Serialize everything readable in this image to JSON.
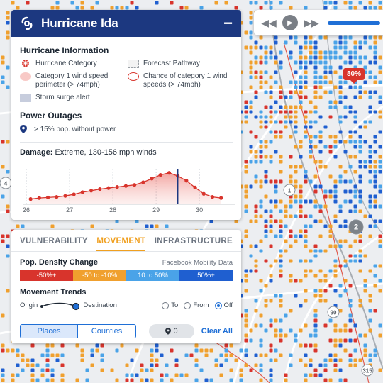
{
  "header": {
    "title": "Hurricane Ida",
    "minimize_label": "−"
  },
  "map": {
    "badge": "80%",
    "markers": [
      "1",
      "2",
      "90",
      "315",
      "4"
    ]
  },
  "legend": {
    "title": "Hurricane Information",
    "items": [
      {
        "icon": "hurricane-category-icon",
        "label": "Hurricane Category"
      },
      {
        "icon": "forecast-pathway-swatch",
        "label": "Forecast Pathway"
      },
      {
        "icon": "wind-perimeter-swatch",
        "label": "Category 1 wind speed perimeter (> 74mph)"
      },
      {
        "icon": "wind-chance-swatch",
        "label": "Chance of category 1 wind speeds (> 74mph)"
      },
      {
        "icon": "storm-surge-swatch",
        "label": "Storm surge alert"
      }
    ]
  },
  "outages": {
    "title": "Power Outages",
    "label": "> 15% pop. without power"
  },
  "damage": {
    "label": "Damage:",
    "value": "Extreme, 130-156 mph winds",
    "tick_labels": [
      "26",
      "27",
      "28",
      "29",
      "30"
    ]
  },
  "chart_data": {
    "type": "area",
    "title": "",
    "xlabel": "",
    "ylabel": "",
    "x": [
      26.1,
      26.3,
      26.5,
      26.7,
      26.9,
      27.1,
      27.3,
      27.5,
      27.7,
      27.9,
      28.1,
      28.3,
      28.5,
      28.7,
      28.9,
      29.1,
      29.3,
      29.5,
      29.7,
      29.9,
      30.1,
      30.3,
      30.5
    ],
    "series": [
      {
        "values": [
          1.0,
          1.2,
          1.3,
          1.4,
          1.6,
          1.9,
          2.3,
          2.6,
          2.9,
          3.1,
          3.3,
          3.5,
          3.7,
          4.2,
          4.9,
          5.6,
          6.0,
          5.4,
          4.5,
          3.2,
          2.0,
          1.4,
          1.2
        ]
      }
    ],
    "current_x": 29.5,
    "xlim": [
      25.95,
      30.8
    ],
    "ylim": [
      0,
      6.5
    ],
    "grid": "vertical dashed"
  },
  "tabs": [
    {
      "label": "VULNERABILITY",
      "active": false
    },
    {
      "label": "MOVEMENT",
      "active": true
    },
    {
      "label": "INFRASTRUCTURE",
      "active": false
    }
  ],
  "density": {
    "title": "Pop. Density Change",
    "source": "Facebook Mobility Data",
    "scale": [
      {
        "label": "-50%+",
        "color": "#d8342c"
      },
      {
        "label": "-50 to -10%",
        "color": "#f0a02e"
      },
      {
        "label": "10 to 50%",
        "color": "#4aa3e8"
      },
      {
        "label": "50%+",
        "color": "#1f5fd0"
      }
    ]
  },
  "trends": {
    "title": "Movement Trends",
    "origin": "Origin",
    "destination": "Destination",
    "options": [
      {
        "label": "To",
        "checked": false
      },
      {
        "label": "From",
        "checked": false
      },
      {
        "label": "Off",
        "checked": true
      }
    ]
  },
  "footer": {
    "places": "Places",
    "counties": "Counties",
    "count": "0",
    "clear_all": "Clear All"
  },
  "colors": {
    "header": "#1c3880",
    "accent_orange": "#f0a020",
    "accent_blue": "#1f6fd6",
    "alert_red": "#d8342c"
  }
}
